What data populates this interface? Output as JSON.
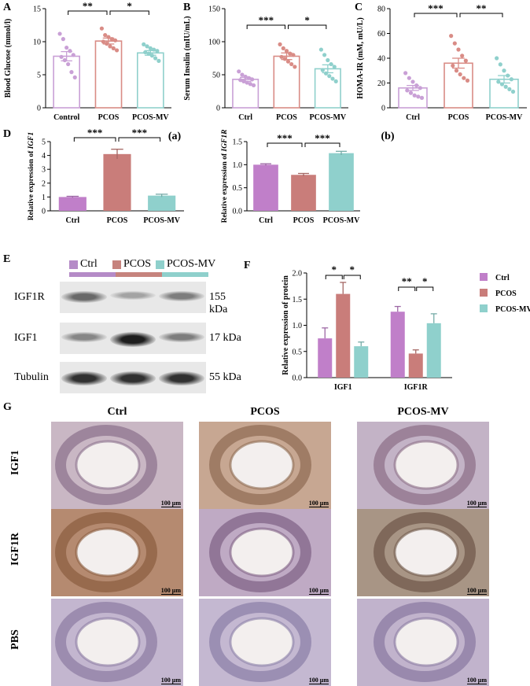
{
  "panels": {
    "A": {
      "label": "A"
    },
    "B": {
      "label": "B"
    },
    "C": {
      "label": "C"
    },
    "D": {
      "label": "D"
    },
    "E": {
      "label": "E"
    },
    "F": {
      "label": "F"
    },
    "G": {
      "label": "G"
    }
  },
  "chart_data": [
    {
      "id": "A",
      "type": "bar",
      "ylabel": "Blood Glucose (mmol/l)",
      "categories": [
        "Control",
        "PCOS",
        "PCOS-MV"
      ],
      "values": [
        7.8,
        10.1,
        8.3
      ],
      "errors": [
        0.7,
        0.45,
        0.35
      ],
      "ylim": [
        0,
        15
      ],
      "yticks": [
        0,
        5,
        10,
        15
      ],
      "points": [
        [
          11.2,
          10.4,
          9.1,
          8.6,
          8.0,
          7.7,
          7.2,
          6.6,
          5.4,
          4.6
        ],
        [
          12.0,
          11.0,
          10.7,
          10.4,
          10.2,
          10.0,
          9.7,
          9.3,
          9.0,
          8.7
        ],
        [
          9.6,
          9.3,
          9.0,
          8.8,
          8.6,
          8.4,
          8.2,
          7.9,
          7.5,
          7.1
        ]
      ],
      "colors": [
        "#c9a0d6",
        "#d98c86",
        "#8fd0cc"
      ],
      "significance": [
        {
          "from": 0,
          "to": 1,
          "label": "**"
        },
        {
          "from": 1,
          "to": 2,
          "label": "*"
        }
      ]
    },
    {
      "id": "B",
      "type": "bar",
      "ylabel": "Serum Insulin (mIU/mL)",
      "categories": [
        "Ctrl",
        "PCOS",
        "PCOS-MV"
      ],
      "values": [
        43,
        78,
        59
      ],
      "errors": [
        3,
        5,
        6
      ],
      "ylim": [
        0,
        150
      ],
      "yticks": [
        0,
        50,
        100,
        150
      ],
      "points": [
        [
          55,
          50,
          47,
          45,
          43,
          42,
          40,
          38,
          36,
          34
        ],
        [
          96,
          90,
          86,
          82,
          80,
          77,
          74,
          70,
          66,
          62
        ],
        [
          88,
          80,
          72,
          66,
          62,
          57,
          52,
          48,
          44,
          40
        ]
      ],
      "colors": [
        "#c9a0d6",
        "#d98c86",
        "#8fd0cc"
      ],
      "significance": [
        {
          "from": 0,
          "to": 1,
          "label": "***"
        },
        {
          "from": 1,
          "to": 2,
          "label": "*"
        }
      ]
    },
    {
      "id": "C",
      "type": "bar",
      "ylabel": "HOMA-IR (mM, mU/L)",
      "categories": [
        "Ctrl",
        "PCOS",
        "PCOS-MV"
      ],
      "values": [
        16,
        36,
        23
      ],
      "errors": [
        2,
        4,
        3
      ],
      "ylim": [
        0,
        80
      ],
      "yticks": [
        0,
        20,
        40,
        60,
        80
      ],
      "points": [
        [
          28,
          24,
          21,
          18,
          16,
          14,
          12,
          10,
          9,
          8
        ],
        [
          58,
          52,
          47,
          42,
          38,
          34,
          30,
          27,
          24,
          22
        ],
        [
          40,
          35,
          30,
          26,
          23,
          21,
          19,
          17,
          15,
          13
        ]
      ],
      "colors": [
        "#c9a0d6",
        "#d98c86",
        "#8fd0cc"
      ],
      "significance": [
        {
          "from": 0,
          "to": 1,
          "label": "***"
        },
        {
          "from": 1,
          "to": 2,
          "label": "**"
        }
      ]
    },
    {
      "id": "Da",
      "type": "bar",
      "tag": "(a)",
      "ylabel": "Relative expression of ",
      "ylabel_italic": "IGF1",
      "categories": [
        "Ctrl",
        "PCOS",
        "PCOS-MV"
      ],
      "values": [
        1.0,
        4.1,
        1.1
      ],
      "errors": [
        0.05,
        0.35,
        0.1
      ],
      "ylim": [
        0,
        5
      ],
      "yticks": [
        0,
        1,
        2,
        3,
        4,
        5
      ],
      "colors": [
        "#c07fc9",
        "#c97d7a",
        "#8fd0cc"
      ],
      "significance": [
        {
          "from": 0,
          "to": 1,
          "label": "***"
        },
        {
          "from": 1,
          "to": 2,
          "label": "***"
        }
      ]
    },
    {
      "id": "Db",
      "type": "bar",
      "tag": "(b)",
      "ylabel": "Relative expression of ",
      "ylabel_italic": "IGF1R",
      "categories": [
        "Ctrl",
        "PCOS",
        "PCOS-MV"
      ],
      "values": [
        1.0,
        0.78,
        1.25
      ],
      "errors": [
        0.02,
        0.03,
        0.04
      ],
      "ylim": [
        0,
        1.5
      ],
      "yticks": [
        "0.0",
        "0.5",
        "1.0",
        "1.5"
      ],
      "colors": [
        "#c07fc9",
        "#c97d7a",
        "#8fd0cc"
      ],
      "significance": [
        {
          "from": 0,
          "to": 1,
          "label": "***"
        },
        {
          "from": 1,
          "to": 2,
          "label": "***"
        }
      ]
    },
    {
      "id": "F",
      "type": "bar",
      "ylabel": "Relative expression of protein",
      "categories": [
        "IGF1",
        "IGF1R"
      ],
      "series": [
        {
          "name": "Ctrl",
          "values": [
            0.75,
            1.26
          ],
          "errors": [
            0.2,
            0.1
          ],
          "color": "#c07fc9"
        },
        {
          "name": "PCOS",
          "values": [
            1.6,
            0.46
          ],
          "errors": [
            0.22,
            0.07
          ],
          "color": "#c97d7a"
        },
        {
          "name": "PCOS-MV",
          "values": [
            0.6,
            1.04
          ],
          "errors": [
            0.08,
            0.18
          ],
          "color": "#8fd0cc"
        }
      ],
      "ylim": [
        0,
        2
      ],
      "yticks": [
        "0.0",
        "0.5",
        "1.0",
        "1.5",
        "2.0"
      ],
      "significance": [
        {
          "group": 0,
          "from": 0,
          "to": 1,
          "label": "*"
        },
        {
          "group": 0,
          "from": 1,
          "to": 2,
          "label": "*"
        },
        {
          "group": 1,
          "from": 0,
          "to": 1,
          "label": "**"
        },
        {
          "group": 1,
          "from": 1,
          "to": 2,
          "label": "*"
        }
      ],
      "legend": "right"
    }
  ],
  "blot": {
    "legend": [
      {
        "name": "Ctrl",
        "color": "#b58bc7"
      },
      {
        "name": "PCOS",
        "color": "#c6837d"
      },
      {
        "name": "PCOS-MV",
        "color": "#8fd0cc"
      }
    ],
    "rows": [
      {
        "name": "IGF1R",
        "kda": "155 kDa",
        "intensity": [
          0.55,
          0.25,
          0.45
        ]
      },
      {
        "name": "IGF1",
        "kda": "17 kDa",
        "intensity": [
          0.4,
          0.95,
          0.45
        ]
      },
      {
        "name": "Tubulin",
        "kda": "55 kDa",
        "intensity": [
          0.85,
          0.85,
          0.85
        ]
      }
    ]
  },
  "histology": {
    "columns": [
      "Ctrl",
      "PCOS",
      "PCOS-MV"
    ],
    "rows": [
      "IGF1",
      "IGF1R",
      "PBS"
    ],
    "scale": "100 μm"
  }
}
